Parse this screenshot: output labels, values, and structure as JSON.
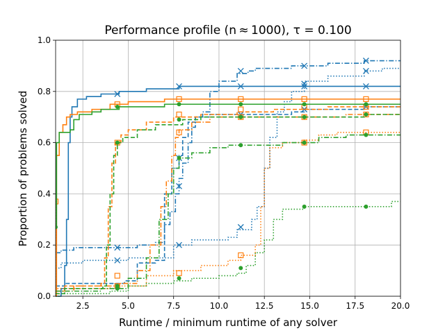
{
  "chart_data": {
    "type": "line",
    "title": "Performance profile (n ≈ 1000), τ = 0.100",
    "xlabel": "Runtime / minimum runtime of any solver",
    "ylabel": "Proportion of problems solved",
    "xlim": [
      1.0,
      20.0
    ],
    "ylim": [
      0.0,
      1.0
    ],
    "grid": true,
    "legend": "none",
    "xticks": [
      "2.5",
      "5.0",
      "7.5",
      "10.0",
      "12.5",
      "15.0",
      "17.5",
      "20.0"
    ],
    "yticks": [
      "0.0",
      "0.2",
      "0.4",
      "0.6",
      "0.8",
      "1.0"
    ],
    "colors": {
      "blue": "#1f77b4",
      "orange": "#ff7f0e",
      "green": "#2ca02c"
    },
    "series": [
      {
        "color": "blue",
        "linestyle": "solid",
        "marker": "x",
        "points": [
          [
            1.0,
            0.0
          ],
          [
            1.3,
            0.03
          ],
          [
            1.5,
            0.12
          ],
          [
            1.6,
            0.3
          ],
          [
            1.7,
            0.6
          ],
          [
            1.8,
            0.7
          ],
          [
            1.9,
            0.74
          ],
          [
            2.2,
            0.77
          ],
          [
            2.7,
            0.78
          ],
          [
            3.5,
            0.79
          ],
          [
            4.5,
            0.8
          ],
          [
            6.0,
            0.81
          ],
          [
            7.8,
            0.82
          ],
          [
            20.0,
            0.82
          ]
        ],
        "markers": [
          [
            4.4,
            0.79
          ],
          [
            7.8,
            0.82
          ],
          [
            11.2,
            0.82
          ],
          [
            14.7,
            0.82
          ],
          [
            18.1,
            0.82
          ]
        ]
      },
      {
        "color": "blue",
        "linestyle": "dashdot",
        "marker": "x",
        "points": [
          [
            1.0,
            0.17
          ],
          [
            1.3,
            0.18
          ],
          [
            2.0,
            0.19
          ],
          [
            5.5,
            0.2
          ],
          [
            6.5,
            0.21
          ],
          [
            7.0,
            0.28
          ],
          [
            7.3,
            0.33
          ],
          [
            7.6,
            0.4
          ],
          [
            7.8,
            0.46
          ],
          [
            8.0,
            0.52
          ],
          [
            8.3,
            0.6
          ],
          [
            8.5,
            0.66
          ],
          [
            8.7,
            0.7
          ],
          [
            9.1,
            0.72
          ],
          [
            9.5,
            0.8
          ],
          [
            10.0,
            0.84
          ],
          [
            11.0,
            0.87
          ],
          [
            11.6,
            0.88
          ],
          [
            12.0,
            0.89
          ],
          [
            14.0,
            0.9
          ],
          [
            16.0,
            0.91
          ],
          [
            18.0,
            0.92
          ],
          [
            20.0,
            0.92
          ]
        ],
        "markers": [
          [
            4.4,
            0.19
          ],
          [
            7.8,
            0.43
          ],
          [
            11.2,
            0.88
          ],
          [
            14.7,
            0.9
          ],
          [
            18.1,
            0.92
          ]
        ]
      },
      {
        "color": "blue",
        "linestyle": "dashed",
        "marker": "x",
        "points": [
          [
            1.0,
            0.04
          ],
          [
            1.5,
            0.05
          ],
          [
            4.8,
            0.06
          ],
          [
            5.5,
            0.13
          ],
          [
            6.5,
            0.14
          ],
          [
            7.0,
            0.4
          ],
          [
            7.4,
            0.5
          ],
          [
            7.8,
            0.55
          ],
          [
            8.0,
            0.62
          ],
          [
            8.3,
            0.68
          ],
          [
            8.7,
            0.7
          ],
          [
            9.5,
            0.71
          ],
          [
            11.0,
            0.71
          ],
          [
            14.0,
            0.72
          ],
          [
            14.7,
            0.73
          ],
          [
            16.0,
            0.73
          ],
          [
            18.0,
            0.74
          ],
          [
            20.0,
            0.74
          ]
        ],
        "markers": [
          [
            4.4,
            0.04
          ],
          [
            7.8,
            0.54
          ],
          [
            11.2,
            0.71
          ],
          [
            14.7,
            0.73
          ],
          [
            18.1,
            0.74
          ]
        ]
      },
      {
        "color": "blue",
        "linestyle": "dotted",
        "marker": "x",
        "points": [
          [
            1.0,
            0.11
          ],
          [
            1.3,
            0.13
          ],
          [
            2.5,
            0.14
          ],
          [
            5.0,
            0.15
          ],
          [
            7.5,
            0.2
          ],
          [
            8.5,
            0.22
          ],
          [
            10.5,
            0.23
          ],
          [
            11.0,
            0.26
          ],
          [
            11.8,
            0.3
          ],
          [
            12.1,
            0.35
          ],
          [
            12.5,
            0.5
          ],
          [
            12.8,
            0.62
          ],
          [
            13.2,
            0.72
          ],
          [
            13.6,
            0.76
          ],
          [
            14.0,
            0.8
          ],
          [
            14.7,
            0.84
          ],
          [
            16.0,
            0.86
          ],
          [
            18.0,
            0.88
          ],
          [
            19.0,
            0.89
          ],
          [
            20.0,
            0.89
          ]
        ],
        "markers": [
          [
            4.4,
            0.14
          ],
          [
            7.8,
            0.2
          ],
          [
            11.2,
            0.27
          ],
          [
            14.7,
            0.83
          ],
          [
            18.1,
            0.88
          ]
        ]
      },
      {
        "color": "orange",
        "linestyle": "solid",
        "marker": "square",
        "points": [
          [
            1.0,
            0.0
          ],
          [
            1.05,
            0.55
          ],
          [
            1.2,
            0.64
          ],
          [
            1.4,
            0.67
          ],
          [
            1.6,
            0.7
          ],
          [
            1.8,
            0.71
          ],
          [
            2.2,
            0.72
          ],
          [
            3.0,
            0.73
          ],
          [
            4.0,
            0.75
          ],
          [
            5.0,
            0.76
          ],
          [
            7.0,
            0.77
          ],
          [
            20.0,
            0.77
          ]
        ],
        "markers": [
          [
            4.4,
            0.75
          ],
          [
            7.8,
            0.77
          ],
          [
            11.2,
            0.77
          ],
          [
            14.7,
            0.77
          ],
          [
            18.1,
            0.77
          ]
        ]
      },
      {
        "color": "orange",
        "linestyle": "dashed",
        "marker": "square",
        "points": [
          [
            1.0,
            0.02
          ],
          [
            1.5,
            0.04
          ],
          [
            3.5,
            0.05
          ],
          [
            3.7,
            0.15
          ],
          [
            3.9,
            0.35
          ],
          [
            4.1,
            0.52
          ],
          [
            4.3,
            0.6
          ],
          [
            4.6,
            0.63
          ],
          [
            5.0,
            0.65
          ],
          [
            6.0,
            0.68
          ],
          [
            7.5,
            0.7
          ],
          [
            9.0,
            0.71
          ],
          [
            11.0,
            0.72
          ],
          [
            13.0,
            0.73
          ],
          [
            16.0,
            0.74
          ],
          [
            20.0,
            0.74
          ]
        ],
        "markers": [
          [
            4.4,
            0.6
          ],
          [
            7.8,
            0.71
          ],
          [
            11.2,
            0.73
          ],
          [
            14.7,
            0.74
          ],
          [
            18.1,
            0.74
          ]
        ]
      },
      {
        "color": "orange",
        "linestyle": "dashdot",
        "marker": "square",
        "points": [
          [
            1.0,
            0.02
          ],
          [
            2.0,
            0.04
          ],
          [
            4.5,
            0.05
          ],
          [
            5.5,
            0.1
          ],
          [
            6.2,
            0.2
          ],
          [
            6.8,
            0.35
          ],
          [
            7.1,
            0.45
          ],
          [
            7.4,
            0.55
          ],
          [
            7.6,
            0.62
          ],
          [
            7.8,
            0.65
          ],
          [
            8.5,
            0.68
          ],
          [
            9.5,
            0.7
          ],
          [
            13.0,
            0.7
          ],
          [
            17.0,
            0.71
          ],
          [
            20.0,
            0.71
          ]
        ],
        "markers": [
          [
            4.4,
            0.04
          ],
          [
            7.8,
            0.64
          ],
          [
            11.2,
            0.7
          ],
          [
            14.7,
            0.7
          ],
          [
            18.1,
            0.71
          ]
        ]
      },
      {
        "color": "orange",
        "linestyle": "dotted",
        "marker": "square",
        "points": [
          [
            1.0,
            0.37
          ],
          [
            1.02,
            0.03
          ],
          [
            4.0,
            0.04
          ],
          [
            6.0,
            0.08
          ],
          [
            7.5,
            0.1
          ],
          [
            9.0,
            0.12
          ],
          [
            10.5,
            0.14
          ],
          [
            11.2,
            0.16
          ],
          [
            12.0,
            0.2
          ],
          [
            12.3,
            0.35
          ],
          [
            12.5,
            0.5
          ],
          [
            12.8,
            0.58
          ],
          [
            13.5,
            0.6
          ],
          [
            14.7,
            0.61
          ],
          [
            15.5,
            0.63
          ],
          [
            16.5,
            0.64
          ],
          [
            20.0,
            0.64
          ]
        ],
        "markers": [
          [
            1.0,
            0.37
          ],
          [
            4.4,
            0.08
          ],
          [
            7.8,
            0.09
          ],
          [
            11.2,
            0.16
          ],
          [
            14.7,
            0.6
          ],
          [
            18.1,
            0.64
          ]
        ]
      },
      {
        "color": "green",
        "linestyle": "solid",
        "marker": "circle",
        "points": [
          [
            1.0,
            0.27
          ],
          [
            1.05,
            0.6
          ],
          [
            1.2,
            0.64
          ],
          [
            1.8,
            0.65
          ],
          [
            2.0,
            0.69
          ],
          [
            2.3,
            0.71
          ],
          [
            3.0,
            0.72
          ],
          [
            3.5,
            0.73
          ],
          [
            4.5,
            0.74
          ],
          [
            7.0,
            0.75
          ],
          [
            20.0,
            0.75
          ]
        ],
        "markers": [
          [
            1.0,
            0.27
          ],
          [
            4.4,
            0.74
          ],
          [
            7.8,
            0.75
          ],
          [
            11.2,
            0.75
          ],
          [
            14.7,
            0.75
          ],
          [
            18.1,
            0.75
          ]
        ]
      },
      {
        "color": "green",
        "linestyle": "dashed",
        "marker": "circle",
        "points": [
          [
            1.0,
            0.01
          ],
          [
            1.5,
            0.03
          ],
          [
            3.6,
            0.04
          ],
          [
            3.8,
            0.2
          ],
          [
            4.0,
            0.4
          ],
          [
            4.2,
            0.55
          ],
          [
            4.4,
            0.6
          ],
          [
            4.7,
            0.62
          ],
          [
            5.5,
            0.65
          ],
          [
            6.5,
            0.67
          ],
          [
            8.0,
            0.69
          ],
          [
            9.0,
            0.7
          ],
          [
            17.0,
            0.7
          ],
          [
            18.0,
            0.71
          ],
          [
            20.0,
            0.71
          ]
        ],
        "markers": [
          [
            4.4,
            0.6
          ],
          [
            7.8,
            0.69
          ],
          [
            11.2,
            0.7
          ],
          [
            14.7,
            0.7
          ],
          [
            18.1,
            0.71
          ]
        ]
      },
      {
        "color": "green",
        "linestyle": "dashdot",
        "marker": "circle",
        "points": [
          [
            1.0,
            0.02
          ],
          [
            3.5,
            0.03
          ],
          [
            5.0,
            0.07
          ],
          [
            6.0,
            0.15
          ],
          [
            6.7,
            0.3
          ],
          [
            7.2,
            0.4
          ],
          [
            7.5,
            0.5
          ],
          [
            7.8,
            0.54
          ],
          [
            8.5,
            0.56
          ],
          [
            9.5,
            0.58
          ],
          [
            10.5,
            0.59
          ],
          [
            13.5,
            0.6
          ],
          [
            15.5,
            0.62
          ],
          [
            17.0,
            0.63
          ],
          [
            20.0,
            0.63
          ]
        ],
        "markers": [
          [
            4.4,
            0.04
          ],
          [
            7.8,
            0.54
          ],
          [
            11.2,
            0.59
          ],
          [
            14.7,
            0.6
          ],
          [
            18.1,
            0.63
          ]
        ]
      },
      {
        "color": "green",
        "linestyle": "dotted",
        "marker": "circle",
        "points": [
          [
            1.0,
            0.0
          ],
          [
            1.2,
            0.01
          ],
          [
            4.0,
            0.02
          ],
          [
            5.0,
            0.04
          ],
          [
            6.0,
            0.05
          ],
          [
            7.5,
            0.06
          ],
          [
            8.5,
            0.07
          ],
          [
            10.0,
            0.08
          ],
          [
            11.0,
            0.09
          ],
          [
            11.5,
            0.12
          ],
          [
            12.0,
            0.17
          ],
          [
            12.5,
            0.22
          ],
          [
            13.0,
            0.3
          ],
          [
            13.5,
            0.34
          ],
          [
            14.7,
            0.35
          ],
          [
            19.0,
            0.35
          ],
          [
            19.5,
            0.37
          ],
          [
            20.0,
            0.37
          ]
        ],
        "markers": [
          [
            4.4,
            0.03
          ],
          [
            7.8,
            0.07
          ],
          [
            11.2,
            0.11
          ],
          [
            14.7,
            0.35
          ],
          [
            18.1,
            0.35
          ]
        ]
      }
    ]
  }
}
